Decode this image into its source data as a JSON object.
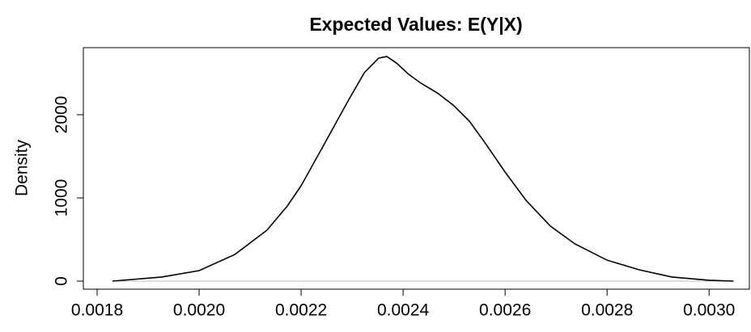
{
  "chart_data": {
    "type": "line",
    "title": "Expected Values: E(Y|X)",
    "ylabel": "Density",
    "x": [
      0.00183,
      0.001927,
      0.002,
      0.00207,
      0.002133,
      0.002173,
      0.0022,
      0.002244,
      0.002292,
      0.002324,
      0.002352,
      0.002368,
      0.002387,
      0.002411,
      0.002435,
      0.002467,
      0.002498,
      0.00253,
      0.002562,
      0.0026,
      0.002641,
      0.002689,
      0.002737,
      0.0028,
      0.002863,
      0.002927,
      0.003,
      0.003048
    ],
    "series": [
      {
        "color": "#000000",
        "values": [
          0,
          49,
          126,
          320,
          612,
          903,
          1146,
          1631,
          2165,
          2505,
          2680,
          2699,
          2621,
          2485,
          2379,
          2262,
          2117,
          1922,
          1650,
          1311,
          971,
          660,
          447,
          252,
          136,
          49,
          10,
          0
        ]
      }
    ],
    "xlim": [
      0.001773,
      0.003079
    ],
    "ylim": [
      -97,
      2806
    ],
    "xticks": [
      {
        "value": 0.0018,
        "label": "0.0018"
      },
      {
        "value": 0.002,
        "label": "0.0020"
      },
      {
        "value": 0.0022,
        "label": "0.0022"
      },
      {
        "value": 0.0024,
        "label": "0.0024"
      },
      {
        "value": 0.0026,
        "label": "0.0026"
      },
      {
        "value": 0.0028,
        "label": "0.0028"
      },
      {
        "value": 0.003,
        "label": "0.0030"
      }
    ],
    "yticks": [
      0,
      1000,
      2000
    ],
    "zero_line": true,
    "zero_line_color": "#bebebe"
  }
}
